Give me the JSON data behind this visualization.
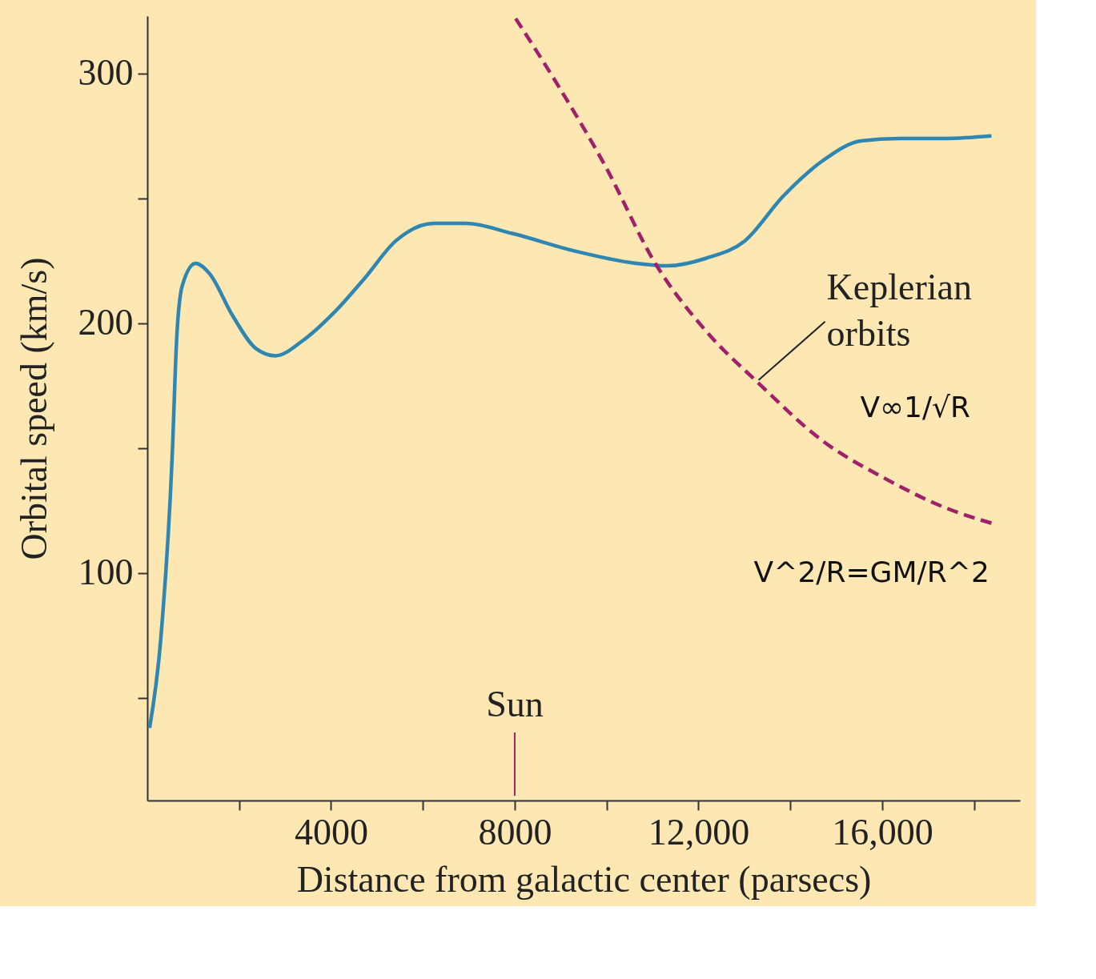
{
  "chart_data": {
    "type": "line",
    "xlabel": "Distance from galactic center (parsecs)",
    "ylabel": "Orbital speed (km/s)",
    "xlim": [
      0,
      19000
    ],
    "ylim": [
      9,
      323
    ],
    "xticks": [
      {
        "value": 2000,
        "label": null
      },
      4000,
      {
        "value": 6000,
        "label": null
      },
      8000,
      {
        "value": 10000,
        "label": null
      },
      {
        "value": 12000,
        "label": "12,000"
      },
      {
        "value": 14000,
        "label": null
      },
      {
        "value": 16000,
        "label": "16,000"
      },
      {
        "value": 18000,
        "label": null
      }
    ],
    "yticks": [
      {
        "value": 50,
        "label": null
      },
      100,
      {
        "value": 150,
        "label": null
      },
      200,
      {
        "value": 250,
        "label": null
      },
      300
    ],
    "marker": "none",
    "series": [
      {
        "color": "#2f86b0",
        "line_style": "solid",
        "x": [
          50,
          290,
          540,
          640,
          760,
          1050,
          1350,
          1860,
          2360,
          2790,
          3380,
          4050,
          4730,
          5410,
          6250,
          6930,
          7940,
          9290,
          10640,
          11320,
          12160,
          13010,
          13850,
          14700,
          15540,
          16390,
          17400,
          18380
        ],
        "values": [
          38,
          73,
          146,
          194,
          215,
          224,
          220,
          203,
          190,
          187,
          193,
          204,
          218,
          233,
          240,
          240,
          236,
          229,
          224,
          223,
          226,
          233,
          251,
          265,
          273,
          274,
          274,
          275
        ]
      },
      {
        "name": "Keplerian orbits",
        "color": "#a0206a",
        "line_style": "dashed",
        "x": [
          8020,
          8950,
          9970,
          11060,
          12160,
          13310,
          14700,
          16050,
          17400,
          18380
        ],
        "values": [
          322,
          295,
          263,
          224,
          197,
          176,
          153,
          138,
          126,
          120
        ]
      }
    ],
    "ref_lines": [
      {
        "axis": "x",
        "value": 8000,
        "label": "Sun",
        "color": "#a0206a"
      }
    ],
    "annotations": [
      "V∞1/√R",
      "V^2/R=GM/R^2"
    ]
  }
}
